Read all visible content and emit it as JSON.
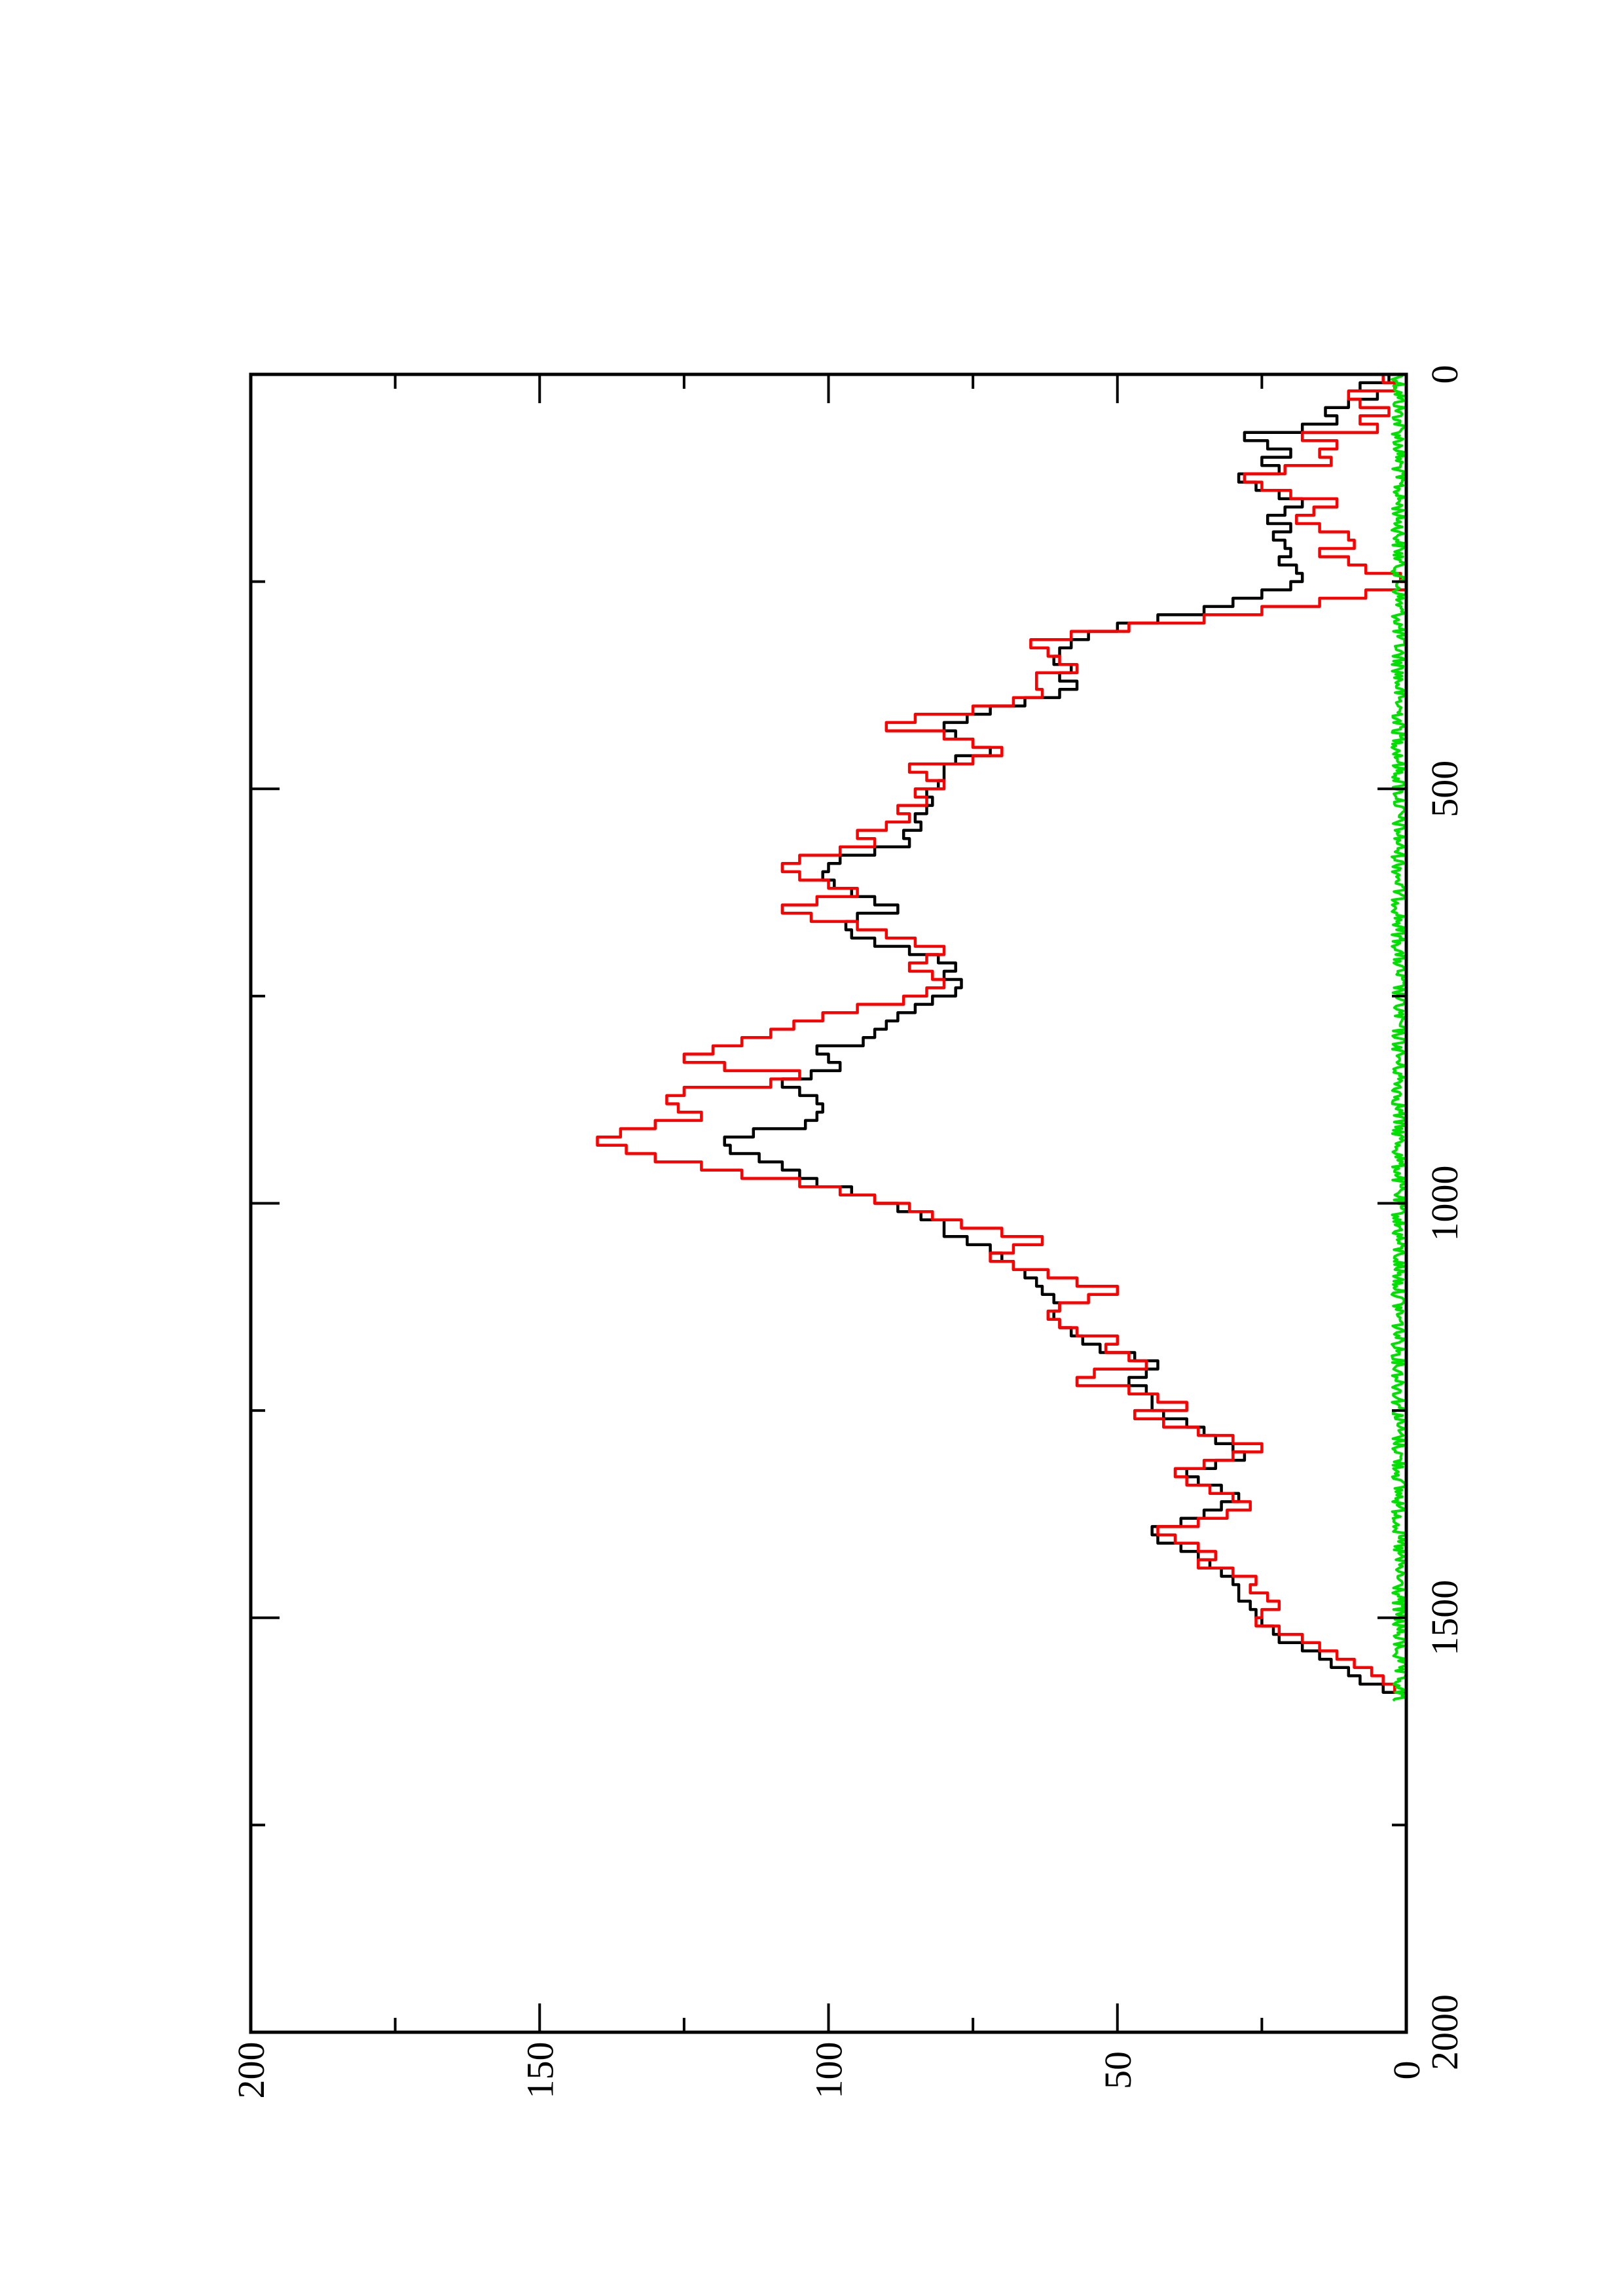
{
  "chart_data": {
    "type": "line",
    "title": "",
    "xlabel": "",
    "ylabel": "",
    "orientation": "rotated-90-ccw",
    "xlim": [
      0,
      2000
    ],
    "ylim": [
      0,
      200
    ],
    "x_ticks": [
      {
        "value": 0,
        "label": "0"
      },
      {
        "value": 500,
        "label": "500"
      },
      {
        "value": 1000,
        "label": "1000"
      },
      {
        "value": 1500,
        "label": "1500"
      },
      {
        "value": 2000,
        "label": "2000"
      }
    ],
    "y_ticks": [
      {
        "value": 0,
        "label": "0"
      },
      {
        "value": 50,
        "label": "50"
      },
      {
        "value": 100,
        "label": "100"
      },
      {
        "value": 150,
        "label": "150"
      },
      {
        "value": 200,
        "label": "200"
      }
    ],
    "x_minor": [
      250,
      750,
      1250,
      1750
    ],
    "y_minor": [
      25,
      75,
      125,
      175
    ],
    "grid": false,
    "legend": "none",
    "series": [
      {
        "color": "#000000",
        "points": [
          [
            0,
            0
          ],
          [
            10,
            3
          ],
          [
            20,
            8
          ],
          [
            30,
            5
          ],
          [
            40,
            10
          ],
          [
            50,
            14
          ],
          [
            60,
            12
          ],
          [
            70,
            18
          ],
          [
            80,
            28
          ],
          [
            90,
            24
          ],
          [
            100,
            20
          ],
          [
            110,
            25
          ],
          [
            120,
            22
          ],
          [
            130,
            29
          ],
          [
            140,
            26
          ],
          [
            150,
            22
          ],
          [
            160,
            18
          ],
          [
            170,
            21
          ],
          [
            180,
            24
          ],
          [
            190,
            20
          ],
          [
            200,
            23
          ],
          [
            210,
            21
          ],
          [
            220,
            20
          ],
          [
            230,
            22
          ],
          [
            240,
            19
          ],
          [
            250,
            18
          ],
          [
            260,
            20
          ],
          [
            270,
            25
          ],
          [
            280,
            30
          ],
          [
            290,
            35
          ],
          [
            300,
            43
          ],
          [
            310,
            50
          ],
          [
            320,
            55
          ],
          [
            330,
            58
          ],
          [
            340,
            60
          ],
          [
            350,
            61
          ],
          [
            360,
            58
          ],
          [
            370,
            60
          ],
          [
            380,
            57
          ],
          [
            390,
            60
          ],
          [
            400,
            66
          ],
          [
            410,
            72
          ],
          [
            420,
            76
          ],
          [
            430,
            80
          ],
          [
            440,
            78
          ],
          [
            450,
            75
          ],
          [
            460,
            72
          ],
          [
            470,
            78
          ],
          [
            480,
            80
          ],
          [
            490,
            80
          ],
          [
            500,
            81
          ],
          [
            510,
            83
          ],
          [
            520,
            82
          ],
          [
            530,
            83
          ],
          [
            540,
            85
          ],
          [
            550,
            84
          ],
          [
            560,
            87
          ],
          [
            570,
            86
          ],
          [
            580,
            92
          ],
          [
            590,
            98
          ],
          [
            600,
            100
          ],
          [
            610,
            101
          ],
          [
            620,
            99
          ],
          [
            630,
            96
          ],
          [
            640,
            92
          ],
          [
            650,
            88
          ],
          [
            660,
            95
          ],
          [
            670,
            97
          ],
          [
            680,
            96
          ],
          [
            690,
            92
          ],
          [
            700,
            86
          ],
          [
            710,
            81
          ],
          [
            720,
            78
          ],
          [
            730,
            80
          ],
          [
            740,
            77
          ],
          [
            750,
            78
          ],
          [
            760,
            82
          ],
          [
            770,
            85
          ],
          [
            780,
            88
          ],
          [
            790,
            90
          ],
          [
            800,
            92
          ],
          [
            810,
            94
          ],
          [
            820,
            102
          ],
          [
            830,
            100
          ],
          [
            840,
            98
          ],
          [
            850,
            103
          ],
          [
            860,
            108
          ],
          [
            870,
            105
          ],
          [
            880,
            102
          ],
          [
            890,
            101
          ],
          [
            900,
            102
          ],
          [
            910,
            104
          ],
          [
            920,
            113
          ],
          [
            930,
            118
          ],
          [
            940,
            117
          ],
          [
            950,
            112
          ],
          [
            960,
            108
          ],
          [
            970,
            105
          ],
          [
            980,
            102
          ],
          [
            990,
            96
          ],
          [
            1000,
            92
          ],
          [
            1010,
            88
          ],
          [
            1020,
            84
          ],
          [
            1030,
            80
          ],
          [
            1040,
            80
          ],
          [
            1050,
            76
          ],
          [
            1060,
            72
          ],
          [
            1070,
            70
          ],
          [
            1080,
            68
          ],
          [
            1090,
            66
          ],
          [
            1100,
            64
          ],
          [
            1110,
            63
          ],
          [
            1120,
            61
          ],
          [
            1130,
            60
          ],
          [
            1140,
            61
          ],
          [
            1150,
            60
          ],
          [
            1160,
            58
          ],
          [
            1170,
            56
          ],
          [
            1180,
            53
          ],
          [
            1190,
            47
          ],
          [
            1200,
            43
          ],
          [
            1210,
            45
          ],
          [
            1220,
            48
          ],
          [
            1230,
            45
          ],
          [
            1240,
            44
          ],
          [
            1250,
            44
          ],
          [
            1260,
            42
          ],
          [
            1270,
            38
          ],
          [
            1280,
            35
          ],
          [
            1290,
            33
          ],
          [
            1300,
            30
          ],
          [
            1310,
            28
          ],
          [
            1320,
            33
          ],
          [
            1330,
            38
          ],
          [
            1340,
            36
          ],
          [
            1350,
            32
          ],
          [
            1360,
            29
          ],
          [
            1370,
            32
          ],
          [
            1380,
            35
          ],
          [
            1390,
            39
          ],
          [
            1400,
            44
          ],
          [
            1410,
            43
          ],
          [
            1420,
            39
          ],
          [
            1430,
            36
          ],
          [
            1440,
            34
          ],
          [
            1450,
            32
          ],
          [
            1460,
            30
          ],
          [
            1470,
            29
          ],
          [
            1480,
            29
          ],
          [
            1490,
            27
          ],
          [
            1500,
            26
          ],
          [
            1510,
            25
          ],
          [
            1520,
            23
          ],
          [
            1530,
            22
          ],
          [
            1540,
            18
          ],
          [
            1550,
            15
          ],
          [
            1560,
            13
          ],
          [
            1570,
            10
          ],
          [
            1580,
            8
          ],
          [
            1590,
            4
          ],
          [
            1595,
            0
          ]
        ]
      },
      {
        "color": "#ff0000",
        "points": [
          [
            0,
            0
          ],
          [
            10,
            4
          ],
          [
            20,
            2
          ],
          [
            30,
            10
          ],
          [
            40,
            8
          ],
          [
            50,
            3
          ],
          [
            60,
            8
          ],
          [
            70,
            5
          ],
          [
            80,
            18
          ],
          [
            90,
            12
          ],
          [
            100,
            15
          ],
          [
            110,
            13
          ],
          [
            120,
            21
          ],
          [
            130,
            28
          ],
          [
            140,
            25
          ],
          [
            150,
            20
          ],
          [
            160,
            12
          ],
          [
            170,
            16
          ],
          [
            180,
            19
          ],
          [
            190,
            15
          ],
          [
            200,
            10
          ],
          [
            210,
            9
          ],
          [
            220,
            15
          ],
          [
            230,
            10
          ],
          [
            240,
            7
          ],
          [
            250,
            1
          ],
          [
            260,
            0
          ],
          [
            270,
            7
          ],
          [
            280,
            15
          ],
          [
            290,
            25
          ],
          [
            300,
            35
          ],
          [
            310,
            48
          ],
          [
            320,
            58
          ],
          [
            330,
            65
          ],
          [
            340,
            62
          ],
          [
            350,
            60
          ],
          [
            360,
            57
          ],
          [
            370,
            64
          ],
          [
            380,
            64
          ],
          [
            390,
            63
          ],
          [
            400,
            68
          ],
          [
            410,
            75
          ],
          [
            420,
            85
          ],
          [
            430,
            90
          ],
          [
            440,
            80
          ],
          [
            450,
            75
          ],
          [
            460,
            70
          ],
          [
            470,
            75
          ],
          [
            480,
            86
          ],
          [
            490,
            83
          ],
          [
            500,
            80
          ],
          [
            510,
            85
          ],
          [
            520,
            83
          ],
          [
            530,
            88
          ],
          [
            540,
            86
          ],
          [
            550,
            90
          ],
          [
            560,
            95
          ],
          [
            570,
            92
          ],
          [
            580,
            98
          ],
          [
            590,
            105
          ],
          [
            600,
            108
          ],
          [
            610,
            105
          ],
          [
            620,
            100
          ],
          [
            630,
            95
          ],
          [
            640,
            102
          ],
          [
            650,
            108
          ],
          [
            660,
            103
          ],
          [
            670,
            95
          ],
          [
            680,
            90
          ],
          [
            690,
            85
          ],
          [
            700,
            80
          ],
          [
            710,
            83
          ],
          [
            720,
            86
          ],
          [
            730,
            82
          ],
          [
            740,
            80
          ],
          [
            750,
            83
          ],
          [
            760,
            87
          ],
          [
            770,
            95
          ],
          [
            780,
            101
          ],
          [
            790,
            106
          ],
          [
            800,
            110
          ],
          [
            810,
            115
          ],
          [
            820,
            120
          ],
          [
            830,
            125
          ],
          [
            840,
            118
          ],
          [
            850,
            105
          ],
          [
            860,
            110
          ],
          [
            870,
            125
          ],
          [
            880,
            128
          ],
          [
            890,
            126
          ],
          [
            900,
            122
          ],
          [
            910,
            130
          ],
          [
            920,
            136
          ],
          [
            930,
            140
          ],
          [
            940,
            135
          ],
          [
            950,
            130
          ],
          [
            960,
            122
          ],
          [
            970,
            115
          ],
          [
            980,
            105
          ],
          [
            990,
            98
          ],
          [
            1000,
            92
          ],
          [
            1010,
            86
          ],
          [
            1020,
            82
          ],
          [
            1030,
            77
          ],
          [
            1040,
            70
          ],
          [
            1050,
            63
          ],
          [
            1060,
            68
          ],
          [
            1070,
            72
          ],
          [
            1080,
            68
          ],
          [
            1090,
            62
          ],
          [
            1100,
            57
          ],
          [
            1110,
            50
          ],
          [
            1120,
            55
          ],
          [
            1130,
            60
          ],
          [
            1140,
            62
          ],
          [
            1150,
            60
          ],
          [
            1160,
            57
          ],
          [
            1170,
            50
          ],
          [
            1180,
            52
          ],
          [
            1190,
            48
          ],
          [
            1200,
            45
          ],
          [
            1210,
            54
          ],
          [
            1220,
            57
          ],
          [
            1230,
            48
          ],
          [
            1240,
            43
          ],
          [
            1250,
            38
          ],
          [
            1260,
            47
          ],
          [
            1270,
            42
          ],
          [
            1280,
            36
          ],
          [
            1290,
            30
          ],
          [
            1300,
            25
          ],
          [
            1310,
            30
          ],
          [
            1320,
            35
          ],
          [
            1330,
            40
          ],
          [
            1340,
            38
          ],
          [
            1350,
            34
          ],
          [
            1360,
            30
          ],
          [
            1370,
            27
          ],
          [
            1380,
            31
          ],
          [
            1390,
            36
          ],
          [
            1400,
            43
          ],
          [
            1410,
            40
          ],
          [
            1420,
            36
          ],
          [
            1430,
            33
          ],
          [
            1440,
            36
          ],
          [
            1450,
            30
          ],
          [
            1460,
            26
          ],
          [
            1470,
            27
          ],
          [
            1480,
            24
          ],
          [
            1490,
            22
          ],
          [
            1500,
            25
          ],
          [
            1510,
            26
          ],
          [
            1520,
            22
          ],
          [
            1530,
            18
          ],
          [
            1540,
            15
          ],
          [
            1550,
            12
          ],
          [
            1560,
            9
          ],
          [
            1570,
            6
          ],
          [
            1580,
            4
          ],
          [
            1590,
            2
          ],
          [
            1595,
            0
          ]
        ]
      },
      {
        "color": "#00e000",
        "noise": true,
        "x_range": [
          0,
          1600
        ],
        "step": 2,
        "amplitude": 2.5
      }
    ]
  }
}
